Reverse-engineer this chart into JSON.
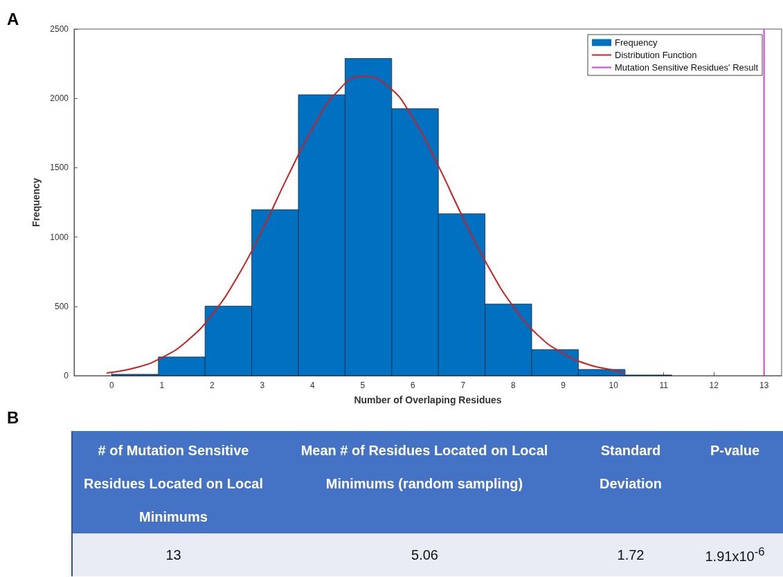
{
  "chart_data": [
    {
      "type": "histogram",
      "xlabel": "Number of Overlaping Residues",
      "ylabel": "Frequency",
      "annotations": [
        "A"
      ],
      "bins": [
        0,
        0.93,
        1.86,
        2.79,
        3.72,
        4.65,
        5.58,
        6.51,
        7.44,
        8.37,
        9.3,
        10.23,
        11.16
      ],
      "series": [
        {
          "name": "Frequency",
          "color": "#0070c0",
          "values": [
            10,
            135,
            502,
            1197,
            2026,
            2288,
            1926,
            1168,
            517,
            188,
            45,
            5
          ]
        },
        {
          "name": "Distribution Function",
          "type": "line",
          "color": "#cc2020",
          "x": [
            -0.1,
            0.5,
            1,
            1.5,
            2,
            2.5,
            3,
            3.5,
            4,
            4.5,
            5,
            5.5,
            6,
            6.5,
            7,
            7.5,
            8,
            8.5,
            9,
            9.5,
            10,
            10.2
          ],
          "values": [
            20,
            60,
            130,
            250,
            440,
            710,
            1050,
            1430,
            1780,
            2050,
            2160,
            2090,
            1860,
            1520,
            1140,
            790,
            500,
            290,
            160,
            80,
            40,
            20
          ]
        },
        {
          "name": "Mutation Sensitive Residues' Result",
          "type": "line",
          "color": "#d63ce0",
          "x": [
            13,
            13
          ],
          "values": [
            0,
            2500
          ]
        }
      ],
      "xlim": [
        -0.75,
        13.35
      ],
      "xticks": [
        0,
        1,
        2,
        3,
        4,
        5,
        6,
        7,
        8,
        9,
        10,
        11,
        12,
        13
      ],
      "ylim": [
        0,
        2500
      ],
      "yticks": [
        0,
        500,
        1000,
        1500,
        2000,
        2500
      ],
      "grid": false,
      "legend": "top right"
    },
    {
      "type": "other",
      "annotations": [
        "B",
        "13",
        "5.06",
        "1.72",
        "1.91x10$^{-6}$"
      ],
      "categories": [
        "# of Mutation Sensitive Residues Located on Local Minimums",
        "Mean # of Residues Located on Local Minimums (random sampling)",
        "Standard Deviation",
        "P-value"
      ]
    }
  ]
}
